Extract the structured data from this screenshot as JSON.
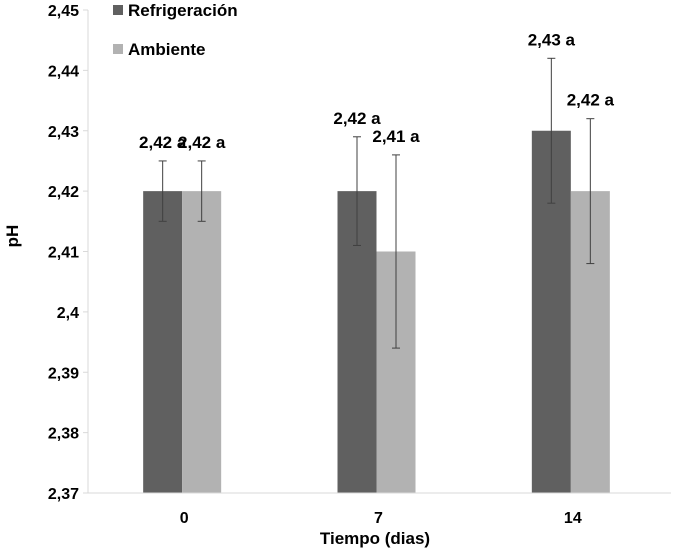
{
  "chart_data": {
    "type": "bar",
    "title": "",
    "xlabel": "Tiempo (dias)",
    "ylabel": "pH",
    "categories": [
      "0",
      "7",
      "14"
    ],
    "ylim": [
      2.37,
      2.45
    ],
    "yticks": [
      2.37,
      2.38,
      2.39,
      2.4,
      2.41,
      2.42,
      2.43,
      2.44,
      2.45
    ],
    "ytick_labels": [
      "2,37",
      "2,38",
      "2,39",
      "2,4",
      "2,41",
      "2,42",
      "2,43",
      "2,44",
      "2,45"
    ],
    "grid": false,
    "legend_position": "top-left",
    "series": [
      {
        "name": "Refrigeración",
        "color": "#606060",
        "values": [
          2.42,
          2.42,
          2.43
        ],
        "errors": [
          0.005,
          0.009,
          0.012
        ],
        "labels": [
          "2,42 a",
          "2,42 a",
          "2,43 a"
        ]
      },
      {
        "name": "Ambiente",
        "color": "#b2b2b2",
        "values": [
          2.42,
          2.41,
          2.42
        ],
        "errors": [
          0.005,
          0.016,
          0.012
        ],
        "labels": [
          "2,42 a",
          "2,41 a",
          "2,42 a"
        ]
      }
    ]
  }
}
